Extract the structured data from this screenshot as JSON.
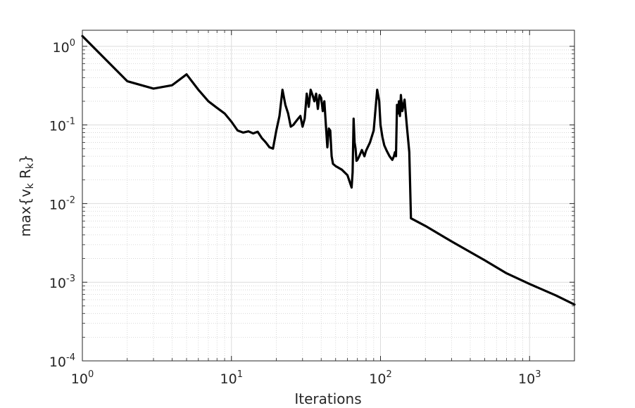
{
  "chart_data": {
    "type": "line",
    "title": "",
    "xlabel": "Iterations",
    "ylabel": "max{v_k R_k}",
    "ylabel_parts": {
      "prefix": "max{v",
      "sub1": "k",
      "middle": " R",
      "sub2": "k",
      "suffix": "}"
    },
    "x_scale": "log",
    "y_scale": "log",
    "xlim": [
      1,
      2000
    ],
    "ylim": [
      0.0001,
      1.6
    ],
    "grid": true,
    "minor_grid": true,
    "x_ticks": [
      {
        "base": "10",
        "exp": "0",
        "value": 1
      },
      {
        "base": "10",
        "exp": "1",
        "value": 10
      },
      {
        "base": "10",
        "exp": "2",
        "value": 100
      },
      {
        "base": "10",
        "exp": "3",
        "value": 1000
      }
    ],
    "y_ticks": [
      {
        "base": "10",
        "exp": "0",
        "value": 1
      },
      {
        "base": "10",
        "exp": "-1",
        "value": 0.1
      },
      {
        "base": "10",
        "exp": "-2",
        "value": 0.01
      },
      {
        "base": "10",
        "exp": "-3",
        "value": 0.001
      },
      {
        "base": "10",
        "exp": "-4",
        "value": 0.0001
      }
    ],
    "line_color": "#000000",
    "series": [
      {
        "x": [
          1,
          2,
          3,
          4,
          5,
          6,
          7,
          8,
          9,
          10,
          11,
          12,
          13,
          14,
          15,
          16,
          17,
          18,
          19,
          20,
          21,
          22,
          23,
          24,
          25,
          26,
          27,
          28,
          29,
          30,
          31,
          32,
          33,
          34,
          35,
          36,
          37,
          38,
          39,
          40,
          41,
          42,
          43,
          44,
          45,
          46,
          47,
          48,
          50,
          55,
          60,
          64,
          65,
          66,
          67,
          68,
          69,
          70,
          72,
          75,
          78,
          80,
          85,
          90,
          95,
          98,
          100,
          103,
          106,
          110,
          115,
          120,
          123,
          125,
          127,
          129,
          131,
          133,
          135,
          137,
          140,
          145,
          150,
          156,
          160,
          200,
          300,
          500,
          700,
          1000,
          1500,
          2000
        ],
        "y": [
          1.35,
          0.36,
          0.29,
          0.32,
          0.44,
          0.28,
          0.2,
          0.165,
          0.14,
          0.11,
          0.085,
          0.08,
          0.083,
          0.078,
          0.082,
          0.068,
          0.06,
          0.052,
          0.05,
          0.085,
          0.13,
          0.28,
          0.18,
          0.14,
          0.095,
          0.1,
          0.11,
          0.12,
          0.13,
          0.095,
          0.12,
          0.25,
          0.17,
          0.28,
          0.24,
          0.2,
          0.25,
          0.16,
          0.24,
          0.22,
          0.15,
          0.2,
          0.1,
          0.052,
          0.09,
          0.085,
          0.04,
          0.032,
          0.03,
          0.027,
          0.023,
          0.016,
          0.025,
          0.12,
          0.06,
          0.05,
          0.035,
          0.036,
          0.04,
          0.048,
          0.04,
          0.047,
          0.06,
          0.085,
          0.28,
          0.2,
          0.1,
          0.07,
          0.055,
          0.047,
          0.04,
          0.036,
          0.04,
          0.045,
          0.04,
          0.18,
          0.14,
          0.2,
          0.13,
          0.24,
          0.15,
          0.21,
          0.1,
          0.045,
          0.0065,
          0.0052,
          0.0033,
          0.0019,
          0.0013,
          0.00095,
          0.00068,
          0.00052
        ]
      }
    ]
  }
}
